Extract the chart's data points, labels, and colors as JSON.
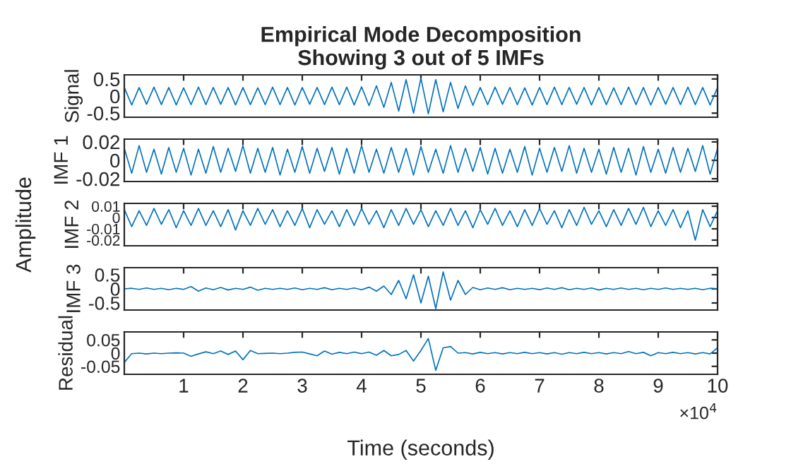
{
  "chart_data": [
    {
      "type": "line",
      "title": "Empirical Mode Decomposition\nShowing 3 out of 5 IMFs",
      "ylabel": "Signal",
      "tick_labels": "y",
      "x": [
        0,
        0.125,
        0.25,
        0.375,
        0.5,
        0.625,
        0.75,
        0.875,
        1,
        1.125,
        1.25,
        1.375,
        1.5,
        1.625,
        1.75,
        1.875,
        2,
        2.125,
        2.25,
        2.375,
        2.5,
        2.625,
        2.75,
        2.875,
        3,
        3.125,
        3.25,
        3.375,
        3.5,
        3.625,
        3.75,
        3.875,
        4,
        4.125,
        4.25,
        4.375,
        4.5,
        4.625,
        4.75,
        4.875,
        5,
        5.125,
        5.25,
        5.375,
        5.5,
        5.625,
        5.75,
        5.875,
        6,
        6.125,
        6.25,
        6.375,
        6.5,
        6.625,
        6.75,
        6.875,
        7,
        7.125,
        7.25,
        7.375,
        7.5,
        7.625,
        7.75,
        7.875,
        8,
        8.125,
        8.25,
        8.375,
        8.5,
        8.625,
        8.75,
        8.875,
        9,
        9.125,
        9.25,
        9.375,
        9.5,
        9.625,
        9.75,
        9.875,
        10
      ],
      "series": [
        {
          "color": "#0072bd",
          "values": [
            0.25,
            -0.26,
            0.25,
            -0.24,
            0.26,
            -0.25,
            0.25,
            -0.26,
            0.24,
            -0.25,
            0.26,
            -0.25,
            0.25,
            -0.24,
            0.25,
            -0.26,
            0.25,
            -0.25,
            0.24,
            -0.25,
            0.26,
            -0.25,
            0.25,
            -0.26,
            0.25,
            -0.24,
            0.25,
            -0.25,
            0.26,
            -0.25,
            0.26,
            -0.26,
            0.27,
            -0.28,
            0.3,
            -0.33,
            0.4,
            -0.44,
            0.48,
            -0.5,
            0.52,
            -0.52,
            0.48,
            -0.46,
            0.4,
            -0.36,
            0.3,
            -0.27,
            0.25,
            -0.25,
            0.26,
            -0.24,
            0.25,
            -0.25,
            0.24,
            -0.26,
            0.25,
            -0.25,
            0.26,
            -0.25,
            0.25,
            -0.24,
            0.25,
            -0.26,
            0.25,
            -0.25,
            0.24,
            -0.25,
            0.26,
            -0.25,
            0.25,
            -0.26,
            0.25,
            -0.24,
            0.25,
            -0.25,
            0.26,
            -0.25,
            0.25,
            -0.26,
            0.25
          ]
        }
      ],
      "xlim": [
        0,
        10
      ],
      "ylim": [
        -0.62,
        0.62
      ],
      "yticks": [
        -0.5,
        0,
        0.5
      ],
      "xticks": [
        1,
        2,
        3,
        4,
        5,
        6,
        7,
        8,
        9,
        10
      ]
    },
    {
      "type": "line",
      "ylabel": "IMF 1",
      "tick_labels": "y",
      "x": [
        0,
        0.125,
        0.25,
        0.375,
        0.5,
        0.625,
        0.75,
        0.875,
        1,
        1.125,
        1.25,
        1.375,
        1.5,
        1.625,
        1.75,
        1.875,
        2,
        2.125,
        2.25,
        2.375,
        2.5,
        2.625,
        2.75,
        2.875,
        3,
        3.125,
        3.25,
        3.375,
        3.5,
        3.625,
        3.75,
        3.875,
        4,
        4.125,
        4.25,
        4.375,
        4.5,
        4.625,
        4.75,
        4.875,
        5,
        5.125,
        5.25,
        5.375,
        5.5,
        5.625,
        5.75,
        5.875,
        6,
        6.125,
        6.25,
        6.375,
        6.5,
        6.625,
        6.75,
        6.875,
        7,
        7.125,
        7.25,
        7.375,
        7.5,
        7.625,
        7.75,
        7.875,
        8,
        8.125,
        8.25,
        8.375,
        8.5,
        8.625,
        8.75,
        8.875,
        9,
        9.125,
        9.25,
        9.375,
        9.5,
        9.625,
        9.75,
        9.875,
        10
      ],
      "series": [
        {
          "color": "#0072bd",
          "values": [
            0.013,
            -0.014,
            0.016,
            -0.013,
            0.012,
            -0.015,
            0.014,
            -0.013,
            0.013,
            -0.016,
            0.012,
            -0.014,
            0.015,
            -0.013,
            0.013,
            -0.012,
            0.016,
            -0.014,
            0.013,
            -0.013,
            0.014,
            -0.016,
            0.012,
            -0.013,
            0.015,
            -0.014,
            0.013,
            -0.012,
            0.014,
            -0.015,
            0.013,
            -0.014,
            0.016,
            -0.013,
            0.012,
            -0.014,
            0.014,
            -0.013,
            0.013,
            -0.016,
            0.015,
            -0.013,
            0.012,
            -0.014,
            0.016,
            -0.013,
            0.013,
            -0.012,
            0.014,
            -0.015,
            0.013,
            -0.014,
            0.012,
            -0.013,
            0.015,
            -0.016,
            0.013,
            -0.013,
            0.014,
            -0.012,
            0.016,
            -0.014,
            0.013,
            -0.013,
            0.012,
            -0.015,
            0.014,
            -0.013,
            0.013,
            -0.016,
            0.015,
            -0.013,
            0.012,
            -0.014,
            0.014,
            -0.013,
            0.013,
            -0.012,
            0.016,
            -0.015,
            0.013
          ]
        }
      ],
      "xlim": [
        0,
        10
      ],
      "ylim": [
        -0.023,
        0.023
      ],
      "yticks": [
        -0.02,
        0,
        0.02
      ],
      "xticks": [
        1,
        2,
        3,
        4,
        5,
        6,
        7,
        8,
        9,
        10
      ]
    },
    {
      "type": "line",
      "ylabel": "IMF 2",
      "tick_labels": "y",
      "annotations": [
        "Amplitude"
      ],
      "x": [
        0,
        0.125,
        0.25,
        0.375,
        0.5,
        0.625,
        0.75,
        0.875,
        1,
        1.125,
        1.25,
        1.375,
        1.5,
        1.625,
        1.75,
        1.875,
        2,
        2.125,
        2.25,
        2.375,
        2.5,
        2.625,
        2.75,
        2.875,
        3,
        3.125,
        3.25,
        3.375,
        3.5,
        3.625,
        3.75,
        3.875,
        4,
        4.125,
        4.25,
        4.375,
        4.5,
        4.625,
        4.75,
        4.875,
        5,
        5.125,
        5.25,
        5.375,
        5.5,
        5.625,
        5.75,
        5.875,
        6,
        6.125,
        6.25,
        6.375,
        6.5,
        6.625,
        6.75,
        6.875,
        7,
        7.125,
        7.25,
        7.375,
        7.5,
        7.625,
        7.75,
        7.875,
        8,
        8.125,
        8.25,
        8.375,
        8.5,
        8.625,
        8.75,
        8.875,
        9,
        9.125,
        9.25,
        9.375,
        9.5,
        9.625,
        9.75,
        9.875,
        10
      ],
      "series": [
        {
          "color": "#0072bd",
          "values": [
            0.007,
            -0.008,
            0.006,
            -0.007,
            0.008,
            -0.006,
            0.007,
            -0.009,
            0.006,
            -0.007,
            0.008,
            -0.007,
            0.006,
            -0.008,
            0.007,
            -0.011,
            0.006,
            -0.007,
            0.008,
            -0.006,
            0.007,
            -0.008,
            0.006,
            -0.007,
            0.008,
            -0.009,
            0.007,
            -0.006,
            0.006,
            -0.008,
            0.007,
            -0.007,
            0.008,
            -0.006,
            0.006,
            -0.009,
            0.007,
            -0.007,
            0.008,
            -0.006,
            0.007,
            -0.008,
            0.006,
            -0.007,
            0.008,
            -0.007,
            0.006,
            -0.009,
            0.007,
            -0.006,
            0.008,
            -0.007,
            0.006,
            -0.008,
            0.007,
            -0.007,
            0.008,
            -0.006,
            0.006,
            -0.009,
            0.007,
            -0.007,
            0.009,
            -0.006,
            0.006,
            -0.008,
            0.007,
            -0.007,
            0.008,
            -0.006,
            0.009,
            -0.008,
            0.006,
            -0.007,
            0.007,
            -0.009,
            0.006,
            -0.02,
            0.007,
            -0.008,
            0.006
          ]
        }
      ],
      "xlim": [
        0,
        10
      ],
      "ylim": [
        -0.025,
        0.0125
      ],
      "yticks": [
        -0.02,
        -0.01,
        0,
        0.01
      ],
      "xticks": [
        1,
        2,
        3,
        4,
        5,
        6,
        7,
        8,
        9,
        10
      ]
    },
    {
      "type": "line",
      "ylabel": "IMF 3",
      "tick_labels": "y",
      "x": [
        0,
        0.125,
        0.25,
        0.375,
        0.5,
        0.625,
        0.75,
        0.875,
        1,
        1.125,
        1.25,
        1.375,
        1.5,
        1.625,
        1.75,
        1.875,
        2,
        2.125,
        2.25,
        2.375,
        2.5,
        2.625,
        2.75,
        2.875,
        3,
        3.125,
        3.25,
        3.375,
        3.5,
        3.625,
        3.75,
        3.875,
        4,
        4.125,
        4.25,
        4.375,
        4.5,
        4.625,
        4.75,
        4.875,
        5,
        5.125,
        5.25,
        5.375,
        5.5,
        5.625,
        5.75,
        5.875,
        6,
        6.125,
        6.25,
        6.375,
        6.5,
        6.625,
        6.75,
        6.875,
        7,
        7.125,
        7.25,
        7.375,
        7.5,
        7.625,
        7.75,
        7.875,
        8,
        8.125,
        8.25,
        8.375,
        8.5,
        8.625,
        8.75,
        8.875,
        9,
        9.125,
        9.25,
        9.375,
        9.5,
        9.625,
        9.75,
        9.875,
        10
      ],
      "series": [
        {
          "color": "#0072bd",
          "values": [
            0.0,
            0.02,
            -0.02,
            0.03,
            -0.02,
            0.02,
            -0.03,
            0.02,
            -0.02,
            0.08,
            -0.08,
            0.03,
            -0.03,
            0.05,
            -0.04,
            0.02,
            -0.02,
            0.06,
            -0.05,
            0.02,
            -0.02,
            0.02,
            -0.02,
            0.03,
            -0.03,
            0.02,
            -0.02,
            0.04,
            -0.03,
            0.02,
            -0.02,
            0.03,
            -0.03,
            0.06,
            -0.08,
            0.1,
            -0.2,
            0.3,
            -0.35,
            0.5,
            -0.5,
            0.45,
            -0.7,
            0.6,
            -0.4,
            0.3,
            -0.2,
            0.05,
            -0.03,
            0.03,
            -0.02,
            0.04,
            -0.03,
            0.02,
            -0.02,
            0.02,
            -0.03,
            0.03,
            -0.02,
            0.04,
            -0.03,
            0.02,
            -0.02,
            0.03,
            -0.04,
            0.02,
            -0.02,
            0.03,
            -0.02,
            0.02,
            -0.03,
            0.02,
            -0.02,
            0.03,
            -0.02,
            0.02,
            -0.02,
            0.02,
            -0.03,
            0.02,
            0.0
          ]
        }
      ],
      "xlim": [
        0,
        10
      ],
      "ylim": [
        -0.75,
        0.75
      ],
      "yticks": [
        -0.5,
        0,
        0.5
      ],
      "xticks": [
        1,
        2,
        3,
        4,
        5,
        6,
        7,
        8,
        9,
        10
      ]
    },
    {
      "type": "line",
      "ylabel": "Residual",
      "xlabel": "Time (seconds)",
      "annotations": [
        "×10$^{4}$"
      ],
      "x": [
        0,
        0.125,
        0.25,
        0.375,
        0.5,
        0.625,
        0.75,
        0.875,
        1,
        1.125,
        1.25,
        1.375,
        1.5,
        1.625,
        1.75,
        1.875,
        2,
        2.125,
        2.25,
        2.375,
        2.5,
        2.625,
        2.75,
        2.875,
        3,
        3.125,
        3.25,
        3.375,
        3.5,
        3.625,
        3.75,
        3.875,
        4,
        4.125,
        4.25,
        4.375,
        4.5,
        4.625,
        4.75,
        4.875,
        5,
        5.125,
        5.25,
        5.375,
        5.5,
        5.625,
        5.75,
        5.875,
        6,
        6.125,
        6.25,
        6.375,
        6.5,
        6.625,
        6.75,
        6.875,
        7,
        7.125,
        7.25,
        7.375,
        7.5,
        7.625,
        7.75,
        7.875,
        8,
        8.125,
        8.25,
        8.375,
        8.5,
        8.625,
        8.75,
        8.875,
        9,
        9.125,
        9.25,
        9.375,
        9.5,
        9.625,
        9.75,
        9.875,
        10
      ],
      "series": [
        {
          "color": "#0072bd",
          "values": [
            -0.035,
            -0.002,
            0.0,
            -0.003,
            0.0,
            -0.002,
            0.0,
            0.001,
            0.0,
            -0.012,
            -0.003,
            0.005,
            -0.002,
            0.008,
            -0.005,
            0.008,
            -0.025,
            0.01,
            -0.002,
            -0.001,
            0.0,
            -0.002,
            0.0,
            0.003,
            0.004,
            -0.003,
            -0.01,
            0.008,
            -0.004,
            0.003,
            -0.002,
            0.004,
            -0.002,
            0.004,
            -0.008,
            0.01,
            -0.01,
            -0.005,
            0.01,
            -0.03,
            0.01,
            0.055,
            -0.065,
            0.02,
            0.025,
            0.0,
            0.002,
            -0.003,
            0.003,
            -0.002,
            0.002,
            -0.003,
            0.002,
            -0.002,
            0.003,
            -0.002,
            0.002,
            -0.003,
            0.002,
            -0.004,
            0.002,
            -0.002,
            0.003,
            -0.002,
            0.002,
            -0.003,
            0.002,
            -0.002,
            0.006,
            -0.002,
            0.003,
            -0.01,
            0.002,
            -0.002,
            0.003,
            -0.002,
            0.002,
            -0.003,
            0.002,
            -0.003,
            0.02
          ]
        }
      ],
      "xlim": [
        0,
        10
      ],
      "ylim": [
        -0.08,
        0.08
      ],
      "yticks": [
        -0.05,
        0,
        0.05
      ],
      "xticks": [
        1,
        2,
        3,
        4,
        5,
        6,
        7,
        8,
        9,
        10
      ]
    }
  ]
}
